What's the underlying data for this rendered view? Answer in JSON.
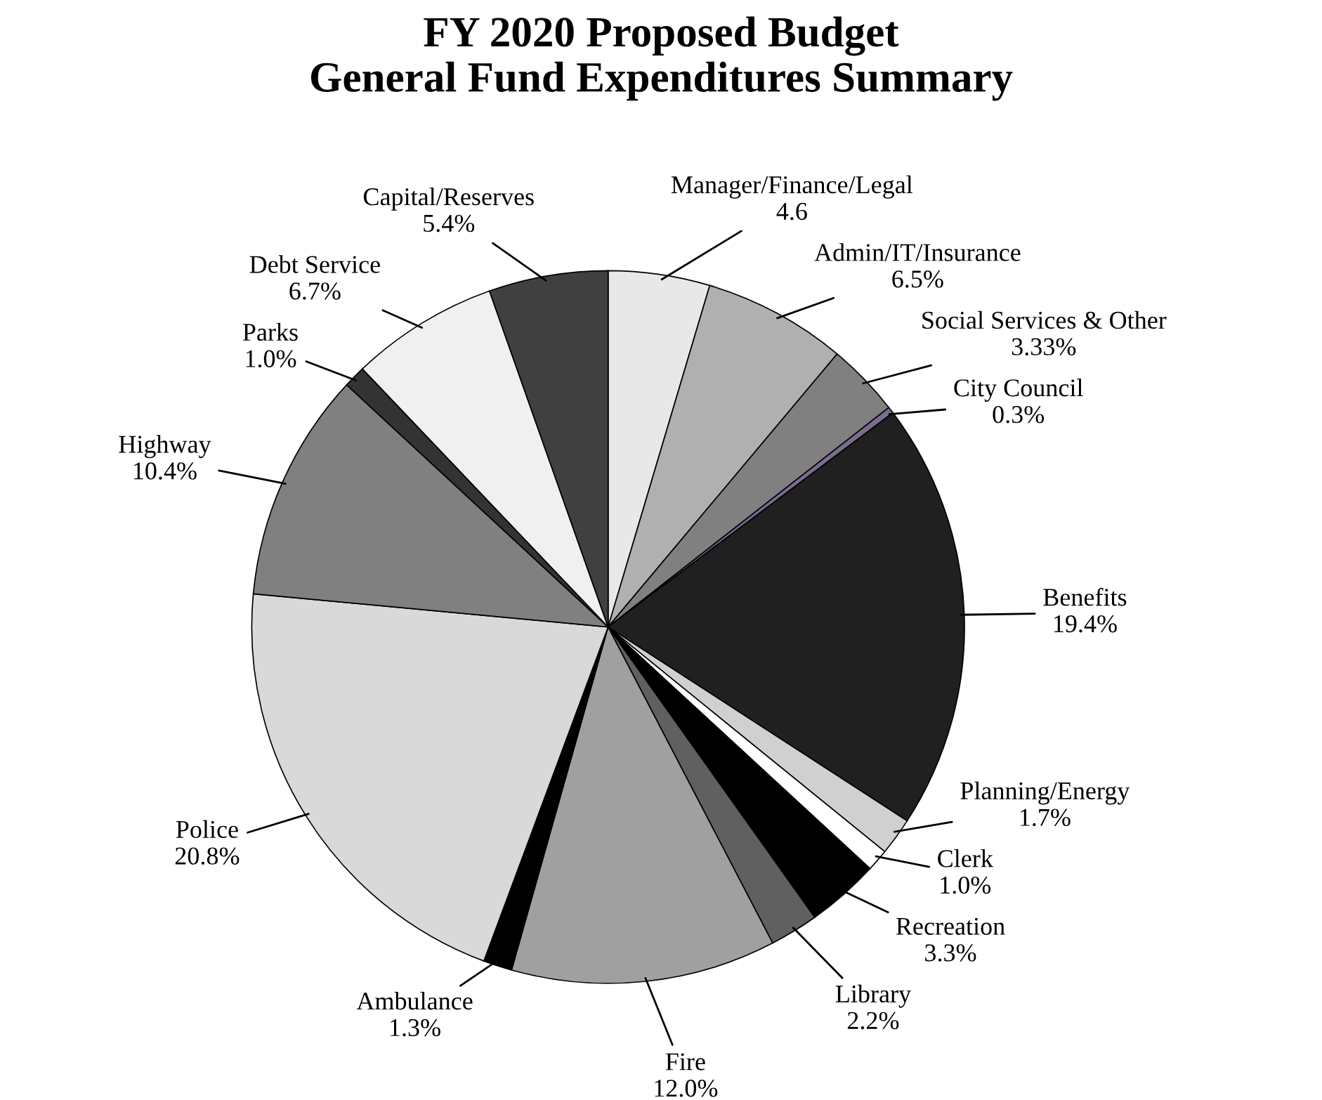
{
  "chart_data": {
    "type": "pie",
    "title": "FY 2020 Proposed Budget\nGeneral Fund Expenditures Summary",
    "categories": [
      "Manager/Finance/Legal",
      "Admin/IT/Insurance",
      "Social Services & Other",
      "City Council",
      "Benefits",
      "Planning/Energy",
      "Clerk",
      "Recreation",
      "Library",
      "Fire",
      "Ambulance",
      "Police",
      "Highway",
      "Parks",
      "Debt Service",
      "Capital/Reserves"
    ],
    "values": [
      4.6,
      6.5,
      3.33,
      0.3,
      19.4,
      1.7,
      1.0,
      3.3,
      2.2,
      12.0,
      1.3,
      20.8,
      10.4,
      1.0,
      6.7,
      5.4
    ],
    "value_labels": [
      "4.6",
      "6.5%",
      "3.33%",
      "0.3%",
      "19.4%",
      "1.7%",
      "1.0%",
      "3.3%",
      "2.2%",
      "12.0%",
      "1.3%",
      "20.8%",
      "10.4%",
      "1.0%",
      "6.7%",
      "5.4%"
    ],
    "colors": [
      "#e8e8e8",
      "#b0b0b0",
      "#808080",
      "#7b6b8f",
      "#202020",
      "#d0d0d0",
      "#ffffff",
      "#000000",
      "#606060",
      "#a0a0a0",
      "#000000",
      "#d9d9d9",
      "#808080",
      "#333333",
      "#f0f0f0",
      "#404040"
    ]
  }
}
